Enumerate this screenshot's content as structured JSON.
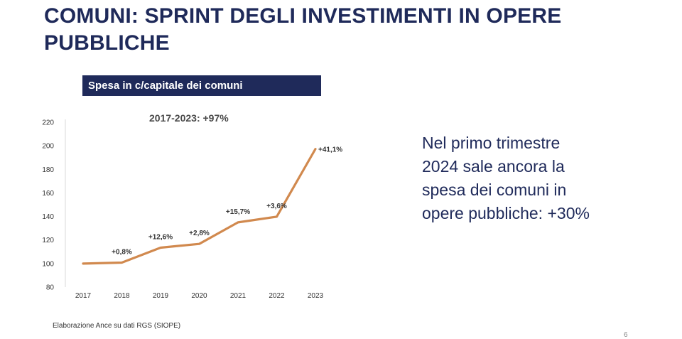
{
  "slide": {
    "title": "COMUNI: SPRINT DEGLI INVESTIMENTI IN OPERE PUBBLICHE",
    "chart_tag": "Spesa in c/capitale dei comuni",
    "growth_label": "2017-2023: +97%",
    "note_lines": [
      "Nel primo trimestre",
      "2024 sale ancora la",
      "spesa dei comuni in",
      "opere pubbliche: +30%"
    ],
    "source": "Elaborazione Ance su dati RGS (SIOPE)",
    "page_number": "6"
  },
  "chart_data": {
    "type": "line",
    "title": "Spesa in c/capitale dei comuni",
    "subtitle": "2017-2023: +97%",
    "categories": [
      "2017",
      "2018",
      "2019",
      "2020",
      "2021",
      "2022",
      "2023"
    ],
    "series": [
      {
        "values": [
          100,
          100.8,
          113.5,
          116.7,
          135.0,
          139.8,
          197.3
        ],
        "color": "#d1894e"
      }
    ],
    "data_labels": [
      "",
      "+0,8%",
      "+12,6%",
      "+2,8%",
      "+15,7%",
      "+3,6%",
      "+41,1%"
    ],
    "ylim": [
      80,
      220
    ],
    "yticks": [
      80,
      100,
      120,
      140,
      160,
      180,
      200,
      220
    ],
    "grid": false,
    "legend": "none"
  }
}
